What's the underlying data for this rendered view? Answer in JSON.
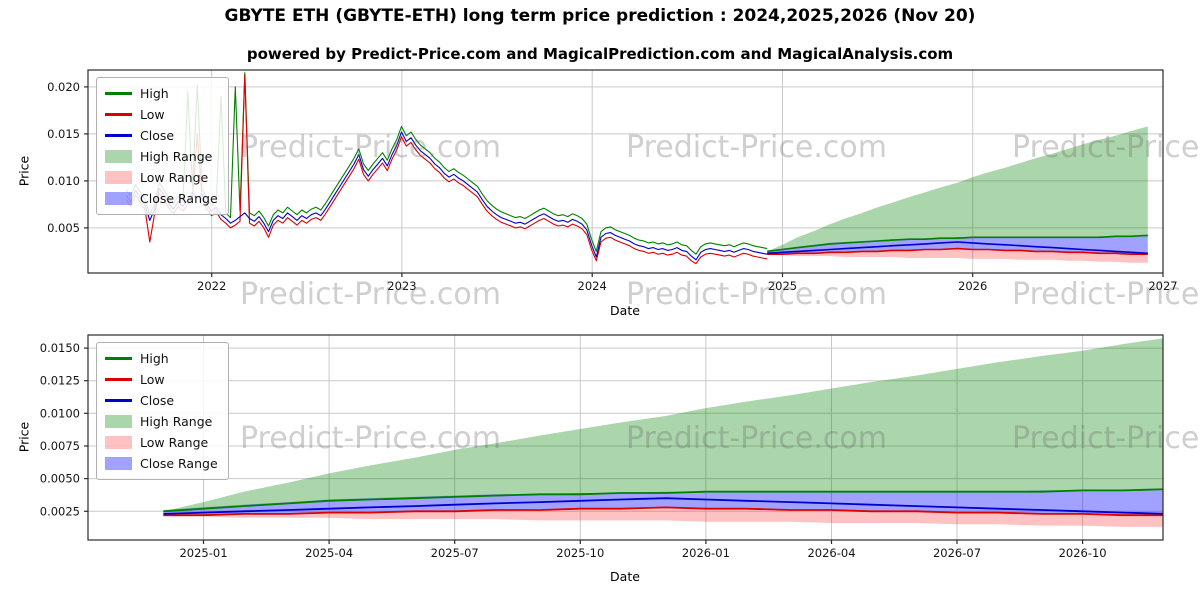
{
  "title": "GBYTE ETH (GBYTE-ETH) long term price prediction : 2024,2025,2026 (Nov 20)",
  "subtitle": "powered by Predict-Price.com and MagicalPrediction.com and MagicalAnalysis.com",
  "watermark": {
    "text": "Predict-Price.com"
  },
  "colors": {
    "high_line": "#008000",
    "low_line": "#dc0000",
    "close_line": "#0000cd",
    "high_range_fill": "rgba(0,128,0,0.33)",
    "low_range_fill": "rgba(255,30,30,0.27)",
    "close_range_fill": "rgba(30,30,255,0.42)",
    "grid": "#c9c9c9",
    "frame": "#2a2a2a",
    "tick_text": "#141414"
  },
  "legend": {
    "items": [
      {
        "label": "High",
        "swatch": "line",
        "color_key": "high_line"
      },
      {
        "label": "Low",
        "swatch": "line",
        "color_key": "low_line"
      },
      {
        "label": "Close",
        "swatch": "line",
        "color_key": "close_line"
      },
      {
        "label": "High Range",
        "swatch": "patch",
        "color_key": "high_range_fill"
      },
      {
        "label": "Low Range",
        "swatch": "patch",
        "color_key": "low_range_fill"
      },
      {
        "label": "Close Range",
        "swatch": "patch",
        "color_key": "close_range_fill"
      }
    ]
  },
  "chart_data": {
    "type": "line",
    "top_axes": {
      "xlabel": "Date",
      "ylabel": "Price",
      "px": [
        88,
        1163
      ],
      "py": [
        273,
        70
      ],
      "xlim": [
        2021.35,
        2027.0
      ],
      "ylim": [
        0.0002,
        0.0218
      ],
      "xticks": [
        {
          "v": 2022,
          "label": "2022"
        },
        {
          "v": 2023,
          "label": "2023"
        },
        {
          "v": 2024,
          "label": "2024"
        },
        {
          "v": 2025,
          "label": "2025"
        },
        {
          "v": 2026,
          "label": "2026"
        },
        {
          "v": 2027,
          "label": "2027"
        }
      ],
      "yticks": [
        {
          "v": 0.005,
          "label": "0.005"
        },
        {
          "v": 0.01,
          "label": "0.010"
        },
        {
          "v": 0.015,
          "label": "0.015"
        },
        {
          "v": 0.02,
          "label": "0.020"
        }
      ]
    },
    "bottom_axes": {
      "xlabel": "Date",
      "ylabel": "Price",
      "px": [
        88,
        1163
      ],
      "py": [
        540,
        335
      ],
      "xlim": [
        2024.77,
        2026.91
      ],
      "ylim": [
        0.0003,
        0.016
      ],
      "xticks": [
        {
          "v": 2025.0,
          "label": "2025-01"
        },
        {
          "v": 2025.25,
          "label": "2025-04"
        },
        {
          "v": 2025.5,
          "label": "2025-07"
        },
        {
          "v": 2025.75,
          "label": "2025-10"
        },
        {
          "v": 2026.0,
          "label": "2026-01"
        },
        {
          "v": 2026.25,
          "label": "2026-04"
        },
        {
          "v": 2026.5,
          "label": "2026-07"
        },
        {
          "v": 2026.75,
          "label": "2026-10"
        }
      ],
      "yticks": [
        {
          "v": 0.0025,
          "label": "0.0025"
        },
        {
          "v": 0.005,
          "label": "0.0050"
        },
        {
          "v": 0.0075,
          "label": "0.0075"
        },
        {
          "v": 0.01,
          "label": "0.0100"
        },
        {
          "v": 0.0125,
          "label": "0.0125"
        },
        {
          "v": 0.015,
          "label": "0.0150"
        }
      ]
    },
    "history": {
      "x_start": 2021.55,
      "x_end": 2024.92,
      "close": [
        0.0085,
        0.0078,
        0.009,
        0.0082,
        0.0074,
        0.0058,
        0.007,
        0.0092,
        0.0085,
        0.0076,
        0.007,
        0.0078,
        0.0073,
        0.008,
        0.0088,
        0.0082,
        0.0086,
        0.0075,
        0.0068,
        0.0072,
        0.0064,
        0.006,
        0.0055,
        0.0058,
        0.0062,
        0.0066,
        0.006,
        0.0057,
        0.0062,
        0.0055,
        0.0046,
        0.0058,
        0.0063,
        0.006,
        0.0066,
        0.0062,
        0.0058,
        0.0063,
        0.006,
        0.0064,
        0.0066,
        0.0063,
        0.007,
        0.0078,
        0.0086,
        0.0094,
        0.0102,
        0.011,
        0.0118,
        0.0128,
        0.0112,
        0.0105,
        0.0112,
        0.0118,
        0.0124,
        0.0116,
        0.0128,
        0.0138,
        0.0152,
        0.0142,
        0.0146,
        0.0138,
        0.0132,
        0.0128,
        0.0124,
        0.0118,
        0.0114,
        0.0108,
        0.0104,
        0.0107,
        0.0103,
        0.01,
        0.0096,
        0.0092,
        0.0088,
        0.008,
        0.0073,
        0.0068,
        0.0064,
        0.0061,
        0.0059,
        0.0057,
        0.0055,
        0.0056,
        0.0054,
        0.0057,
        0.006,
        0.0063,
        0.0065,
        0.0062,
        0.0059,
        0.0057,
        0.0058,
        0.0056,
        0.0059,
        0.0057,
        0.0054,
        0.0048,
        0.0032,
        0.0019,
        0.004,
        0.0044,
        0.0045,
        0.0042,
        0.004,
        0.0038,
        0.0036,
        0.0033,
        0.0031,
        0.003,
        0.0028,
        0.0029,
        0.0027,
        0.0028,
        0.0026,
        0.0027,
        0.0029,
        0.0026,
        0.0025,
        0.002,
        0.0016,
        0.0024,
        0.0027,
        0.0028,
        0.0027,
        0.0026,
        0.0025,
        0.0026,
        0.0024,
        0.0026,
        0.0028,
        0.0027,
        0.0025,
        0.0024,
        0.0023,
        0.0022
      ],
      "high": [
        0.0091,
        0.0084,
        0.0096,
        0.0088,
        0.008,
        0.0064,
        0.0076,
        0.0098,
        0.0091,
        0.0082,
        0.0076,
        0.0084,
        0.0079,
        0.0195,
        0.0094,
        0.0202,
        0.0092,
        0.0081,
        0.0074,
        0.0078,
        0.019,
        0.0066,
        0.0061,
        0.02,
        0.0068,
        0.0215,
        0.0066,
        0.0063,
        0.0068,
        0.0061,
        0.0052,
        0.0064,
        0.0069,
        0.0066,
        0.0072,
        0.0068,
        0.0064,
        0.0069,
        0.0066,
        0.007,
        0.0072,
        0.0069,
        0.0076,
        0.0084,
        0.0092,
        0.01,
        0.0108,
        0.0116,
        0.0124,
        0.0134,
        0.0118,
        0.0111,
        0.0118,
        0.0124,
        0.013,
        0.0122,
        0.0134,
        0.0144,
        0.0158,
        0.0148,
        0.0152,
        0.0144,
        0.0138,
        0.0134,
        0.013,
        0.0124,
        0.012,
        0.0114,
        0.011,
        0.0113,
        0.0109,
        0.0106,
        0.0102,
        0.0098,
        0.0094,
        0.0086,
        0.0079,
        0.0074,
        0.007,
        0.0067,
        0.0065,
        0.0063,
        0.0061,
        0.0062,
        0.006,
        0.0063,
        0.0066,
        0.0069,
        0.0071,
        0.0068,
        0.0065,
        0.0063,
        0.0064,
        0.0062,
        0.0065,
        0.0063,
        0.006,
        0.0054,
        0.0038,
        0.0025,
        0.0046,
        0.005,
        0.0051,
        0.0048,
        0.0046,
        0.0044,
        0.0042,
        0.0039,
        0.0037,
        0.0036,
        0.0034,
        0.0035,
        0.0033,
        0.0034,
        0.0032,
        0.0033,
        0.0035,
        0.0032,
        0.0031,
        0.0026,
        0.0022,
        0.003,
        0.0033,
        0.0034,
        0.0033,
        0.0032,
        0.0031,
        0.0032,
        0.003,
        0.0032,
        0.0034,
        0.0033,
        0.0031,
        0.003,
        0.0029,
        0.0028
      ],
      "low": [
        0.008,
        0.0073,
        0.0085,
        0.0077,
        0.0069,
        0.0035,
        0.0065,
        0.0087,
        0.008,
        0.0071,
        0.0065,
        0.0073,
        0.0068,
        0.0075,
        0.0083,
        0.015,
        0.0081,
        0.007,
        0.0063,
        0.0067,
        0.0059,
        0.0055,
        0.005,
        0.0053,
        0.0057,
        0.0213,
        0.0055,
        0.0052,
        0.0057,
        0.005,
        0.004,
        0.0053,
        0.0058,
        0.0055,
        0.0061,
        0.0057,
        0.0053,
        0.0058,
        0.0055,
        0.0059,
        0.0061,
        0.0058,
        0.0065,
        0.0073,
        0.0081,
        0.0089,
        0.0097,
        0.0105,
        0.0113,
        0.0123,
        0.0107,
        0.01,
        0.0107,
        0.0113,
        0.0119,
        0.0111,
        0.0123,
        0.0133,
        0.0147,
        0.0137,
        0.0141,
        0.0133,
        0.0127,
        0.0123,
        0.0119,
        0.0113,
        0.0109,
        0.0103,
        0.0099,
        0.0102,
        0.0098,
        0.0095,
        0.0091,
        0.0087,
        0.0083,
        0.0075,
        0.0068,
        0.0063,
        0.0059,
        0.0056,
        0.0054,
        0.0052,
        0.005,
        0.0051,
        0.0049,
        0.0052,
        0.0055,
        0.0058,
        0.006,
        0.0057,
        0.0054,
        0.0052,
        0.0053,
        0.0051,
        0.0054,
        0.0052,
        0.0049,
        0.0043,
        0.0027,
        0.0015,
        0.0035,
        0.0039,
        0.004,
        0.0037,
        0.0035,
        0.0033,
        0.0031,
        0.0028,
        0.0026,
        0.0025,
        0.0023,
        0.0024,
        0.0022,
        0.0023,
        0.0021,
        0.0022,
        0.0024,
        0.0021,
        0.002,
        0.0015,
        0.0012,
        0.0019,
        0.0022,
        0.0023,
        0.0022,
        0.0021,
        0.002,
        0.0021,
        0.0019,
        0.0021,
        0.0023,
        0.0022,
        0.002,
        0.0019,
        0.0018,
        0.0017
      ]
    },
    "prediction": {
      "x": [
        2024.92,
        2025.0,
        2025.08,
        2025.17,
        2025.25,
        2025.33,
        2025.42,
        2025.5,
        2025.58,
        2025.67,
        2025.75,
        2025.83,
        2025.92,
        2026.0,
        2026.08,
        2026.17,
        2026.25,
        2026.33,
        2026.42,
        2026.5,
        2026.58,
        2026.67,
        2026.75,
        2026.83,
        2026.92
      ],
      "high_upper": [
        0.0025,
        0.0032,
        0.004,
        0.0047,
        0.0054,
        0.006,
        0.0066,
        0.0072,
        0.0077,
        0.0083,
        0.0088,
        0.0093,
        0.0098,
        0.0104,
        0.0109,
        0.0114,
        0.0119,
        0.0124,
        0.0129,
        0.0134,
        0.0139,
        0.0144,
        0.0148,
        0.0153,
        0.0158
      ],
      "high": [
        0.0025,
        0.0027,
        0.0029,
        0.0031,
        0.0033,
        0.0034,
        0.0035,
        0.0036,
        0.0037,
        0.0038,
        0.0038,
        0.0039,
        0.0039,
        0.004,
        0.004,
        0.004,
        0.004,
        0.004,
        0.004,
        0.004,
        0.004,
        0.004,
        0.0041,
        0.0041,
        0.0042
      ],
      "close": [
        0.0023,
        0.0024,
        0.0025,
        0.0026,
        0.0027,
        0.0028,
        0.0029,
        0.003,
        0.0031,
        0.0032,
        0.0033,
        0.0034,
        0.0035,
        0.0034,
        0.0033,
        0.0032,
        0.0031,
        0.003,
        0.0029,
        0.0028,
        0.0027,
        0.0026,
        0.0025,
        0.0024,
        0.0023
      ],
      "close_upper": [
        0.0026,
        0.0028,
        0.003,
        0.0032,
        0.0034,
        0.0035,
        0.0036,
        0.0037,
        0.0038,
        0.0038,
        0.0039,
        0.0039,
        0.004,
        0.004,
        0.004,
        0.004,
        0.004,
        0.004,
        0.004,
        0.004,
        0.004,
        0.0041,
        0.0041,
        0.0041,
        0.0042
      ],
      "close_lower": [
        0.0022,
        0.00225,
        0.0023,
        0.00235,
        0.0024,
        0.00245,
        0.0025,
        0.00255,
        0.0026,
        0.00265,
        0.0027,
        0.00275,
        0.0028,
        0.00275,
        0.0027,
        0.00265,
        0.0026,
        0.00255,
        0.0025,
        0.00245,
        0.0024,
        0.00235,
        0.0023,
        0.00225,
        0.0022
      ],
      "low": [
        0.0022,
        0.0022,
        0.0023,
        0.0023,
        0.0024,
        0.0024,
        0.0025,
        0.0025,
        0.0026,
        0.0026,
        0.0027,
        0.0027,
        0.0028,
        0.0027,
        0.0027,
        0.0026,
        0.0026,
        0.0025,
        0.0025,
        0.0024,
        0.0024,
        0.0023,
        0.0023,
        0.0022,
        0.0022
      ],
      "low_lower": [
        0.0021,
        0.0021,
        0.002,
        0.002,
        0.002,
        0.0019,
        0.0019,
        0.0019,
        0.0019,
        0.0018,
        0.0018,
        0.0018,
        0.0018,
        0.0017,
        0.0017,
        0.0017,
        0.0016,
        0.0016,
        0.0016,
        0.0015,
        0.0015,
        0.0014,
        0.0014,
        0.0013,
        0.0013
      ]
    }
  }
}
